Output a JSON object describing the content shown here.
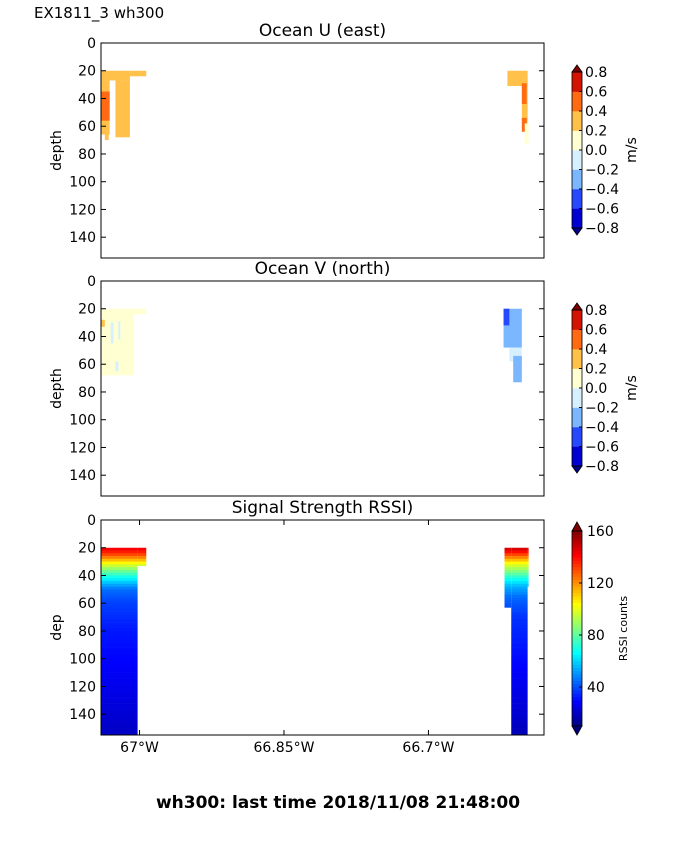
{
  "figure": {
    "corner_label": "EX1811_3 wh300",
    "footer": "wh300: last time 2018/11/08 21:48:00"
  },
  "chart_data": [
    {
      "type": "heatmap",
      "title": "Ocean U (east)",
      "ylabel": "depth",
      "ylim": [
        155,
        0
      ],
      "yticks": [
        0,
        20,
        40,
        60,
        80,
        100,
        120,
        140
      ],
      "xlim": [
        -67.04,
        -66.58
      ],
      "xticks": [],
      "colorbar": {
        "label": "m/s",
        "range": [
          -0.8,
          0.8
        ],
        "ticks": [
          "0.8",
          "0.6",
          "0.4",
          "0.2",
          "0.0",
          "−0.2",
          "−0.4",
          "−0.6",
          "−0.8"
        ],
        "levels": [
          "#0000d0",
          "#2648ff",
          "#7ab7ff",
          "#d7f0ff",
          "#ffffd2",
          "#ffc14a",
          "#ff6a12",
          "#d21400"
        ]
      },
      "cells": [
        {
          "lon0": -67.04,
          "lon1": -67.01,
          "d0": 20,
          "d1": 27,
          "value": 0.25
        },
        {
          "lon0": -67.01,
          "lon1": -66.993,
          "d0": 20,
          "d1": 24,
          "value": 0.25
        },
        {
          "lon0": -67.04,
          "lon1": -67.031,
          "d0": 27,
          "d1": 66,
          "value": 0.25
        },
        {
          "lon0": -67.04,
          "lon1": -67.031,
          "d0": 35,
          "d1": 56,
          "value": 0.5
        },
        {
          "lon0": -67.036,
          "lon1": -67.032,
          "d0": 60,
          "d1": 70,
          "value": 0.25
        },
        {
          "lon0": -67.025,
          "lon1": -67.01,
          "d0": 27,
          "d1": 68,
          "value": 0.25
        },
        {
          "lon0": -66.618,
          "lon1": -66.597,
          "d0": 20,
          "d1": 31,
          "value": 0.25
        },
        {
          "lon0": -66.603,
          "lon1": -66.597,
          "d0": 25,
          "d1": 58,
          "value": 0.25
        },
        {
          "lon0": -66.603,
          "lon1": -66.598,
          "d0": 29,
          "d1": 44,
          "value": 0.5
        },
        {
          "lon0": -66.603,
          "lon1": -66.598,
          "d0": 54,
          "d1": 64,
          "value": 0.5
        },
        {
          "lon0": -66.6,
          "lon1": -66.596,
          "d0": 58,
          "d1": 73,
          "value": 0.05
        }
      ]
    },
    {
      "type": "heatmap",
      "title": "Ocean V (north)",
      "ylabel": "depth",
      "ylim": [
        155,
        0
      ],
      "yticks": [
        0,
        20,
        40,
        60,
        80,
        100,
        120,
        140
      ],
      "xlim": [
        -67.04,
        -66.58
      ],
      "xticks": [],
      "colorbar": {
        "label": "m/s",
        "range": [
          -0.8,
          0.8
        ],
        "ticks": [
          "0.8",
          "0.6",
          "0.4",
          "0.2",
          "0.0",
          "−0.2",
          "−0.4",
          "−0.6",
          "−0.8"
        ],
        "levels": [
          "#0000d0",
          "#2648ff",
          "#7ab7ff",
          "#d7f0ff",
          "#ffffd2",
          "#ffc14a",
          "#ff6a12",
          "#d21400"
        ]
      },
      "cells": [
        {
          "lon0": -67.04,
          "lon1": -67.006,
          "d0": 20,
          "d1": 68,
          "value": 0.05
        },
        {
          "lon0": -67.006,
          "lon1": -66.993,
          "d0": 20,
          "d1": 24,
          "value": 0.05
        },
        {
          "lon0": -67.04,
          "lon1": -67.036,
          "d0": 28,
          "d1": 33,
          "value": 0.3
        },
        {
          "lon0": -67.03,
          "lon1": -67.027,
          "d0": 30,
          "d1": 45,
          "value": -0.05
        },
        {
          "lon0": -67.022,
          "lon1": -67.02,
          "d0": 29,
          "d1": 42,
          "value": -0.05
        },
        {
          "lon0": -67.025,
          "lon1": -67.022,
          "d0": 58,
          "d1": 65,
          "value": -0.05
        },
        {
          "lon0": -66.622,
          "lon1": -66.603,
          "d0": 20,
          "d1": 48,
          "value": -0.3
        },
        {
          "lon0": -66.622,
          "lon1": -66.616,
          "d0": 20,
          "d1": 32,
          "value": -0.45
        },
        {
          "lon0": -66.616,
          "lon1": -66.603,
          "d0": 48,
          "d1": 58,
          "value": -0.05
        },
        {
          "lon0": -66.612,
          "lon1": -66.603,
          "d0": 54,
          "d1": 73,
          "value": -0.3
        }
      ]
    },
    {
      "type": "heatmap",
      "title": "Signal Strength RSSI)",
      "ylabel": "dep",
      "ylim": [
        155,
        0
      ],
      "yticks": [
        0,
        20,
        40,
        60,
        80,
        100,
        120,
        140
      ],
      "xlim": [
        -67.04,
        -66.58
      ],
      "xticks": [
        -67.0,
        -66.85,
        -66.7
      ],
      "xticklabels": [
        "67°W",
        "66.85°W",
        "66.7°W"
      ],
      "colorbar": {
        "label": "RSSI counts",
        "range": [
          10,
          160
        ],
        "ticks": [
          "160",
          "120",
          "80",
          "40"
        ],
        "tick_values": [
          160,
          120,
          80,
          40
        ]
      },
      "cells": [
        {
          "lon0": -67.04,
          "lon1": -67.002,
          "d0": 20,
          "d1": 155,
          "profile": "west"
        },
        {
          "lon0": -67.002,
          "lon1": -66.993,
          "d0": 20,
          "d1": 33,
          "profile": "west"
        },
        {
          "lon0": -66.621,
          "lon1": -66.614,
          "d0": 20,
          "d1": 63,
          "profile": "east"
        },
        {
          "lon0": -66.614,
          "lon1": -66.597,
          "d0": 20,
          "d1": 155,
          "profile": "east"
        },
        {
          "lon0": -66.597,
          "lon1": -66.596,
          "d0": 20,
          "d1": 48,
          "profile": "east"
        }
      ],
      "profiles": {
        "west": [
          [
            20,
            145
          ],
          [
            24,
            135
          ],
          [
            28,
            118
          ],
          [
            32,
            100
          ],
          [
            36,
            85
          ],
          [
            40,
            72
          ],
          [
            45,
            58
          ],
          [
            50,
            45
          ],
          [
            60,
            38
          ],
          [
            80,
            32
          ],
          [
            120,
            26
          ],
          [
            155,
            20
          ]
        ],
        "east": [
          [
            20,
            150
          ],
          [
            23,
            140
          ],
          [
            27,
            122
          ],
          [
            32,
            100
          ],
          [
            37,
            85
          ],
          [
            42,
            70
          ],
          [
            48,
            55
          ],
          [
            56,
            44
          ],
          [
            70,
            36
          ],
          [
            100,
            30
          ],
          [
            140,
            22
          ],
          [
            155,
            18
          ]
        ]
      }
    }
  ]
}
